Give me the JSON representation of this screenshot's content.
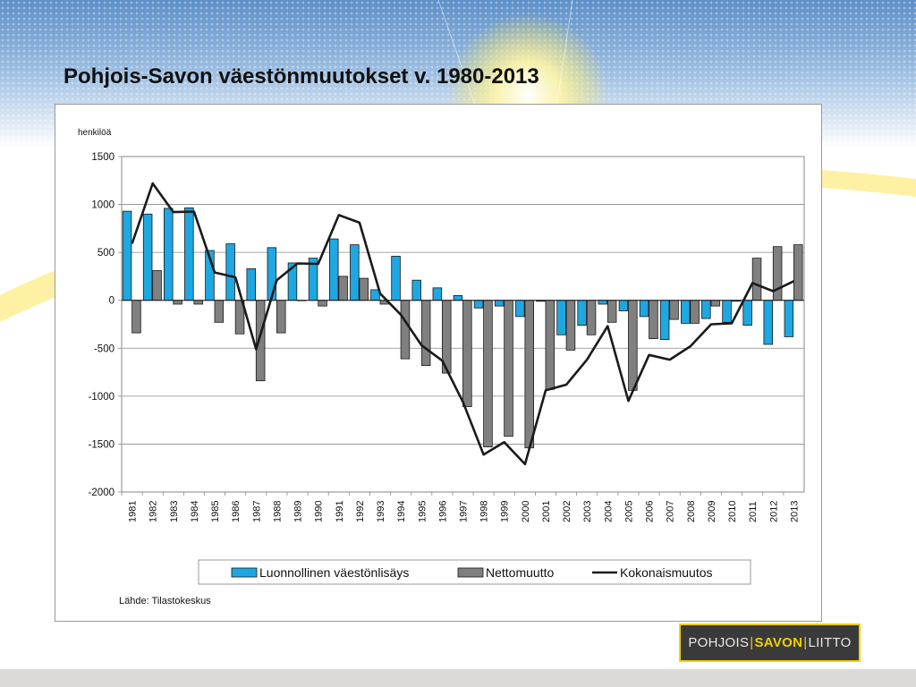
{
  "slide": {
    "title": "Pohjois-Savon väestönmuutokset v. 1980-2013",
    "source": "Lähde: Tilastokeskus",
    "logo": {
      "part1": "POHJOIS",
      "part2": "SAVON",
      "part3": "LIITTO"
    }
  },
  "colors": {
    "natural": "#1ea7e1",
    "net": "#808080",
    "total": "#1a1a1a",
    "logo_accent": "#f0d000"
  },
  "chart_data": {
    "type": "bar",
    "unit_label": "henkilöä",
    "categories": [
      "1981",
      "1982",
      "1983",
      "1984",
      "1985",
      "1986",
      "1987",
      "1988",
      "1989",
      "1990",
      "1991",
      "1992",
      "1993",
      "1994",
      "1995",
      "1996",
      "1997",
      "1998",
      "1999",
      "2000",
      "2001",
      "2002",
      "2003",
      "2004",
      "2005",
      "2006",
      "2007",
      "2008",
      "2009",
      "2010",
      "2011",
      "2012",
      "2013"
    ],
    "ylim": [
      -2000,
      1500
    ],
    "yticks": [
      1500,
      1000,
      500,
      0,
      -500,
      -1000,
      -1500,
      -2000
    ],
    "grid": true,
    "legend_position": "bottom",
    "series": [
      {
        "name": "Luonnollinen väestönlisäys",
        "type": "bar",
        "values": [
          930,
          900,
          960,
          965,
          520,
          590,
          330,
          550,
          390,
          440,
          640,
          580,
          110,
          460,
          210,
          130,
          50,
          -80,
          -60,
          -170,
          -10,
          -360,
          -260,
          -40,
          -110,
          -170,
          -410,
          -240,
          -190,
          -230,
          -260,
          -460,
          -380
        ]
      },
      {
        "name": "Nettomuutto",
        "type": "bar",
        "values": [
          -340,
          310,
          -40,
          -40,
          -230,
          -350,
          -840,
          -340,
          0,
          -60,
          250,
          230,
          -40,
          -610,
          -680,
          -760,
          -1110,
          -1530,
          -1420,
          -1540,
          -930,
          -520,
          -360,
          -230,
          -940,
          -400,
          -200,
          -240,
          -60,
          -10,
          440,
          560,
          580
        ]
      },
      {
        "name": "Kokonaismuutos",
        "type": "line",
        "values": [
          590,
          1220,
          920,
          925,
          290,
          240,
          -510,
          210,
          385,
          380,
          890,
          810,
          70,
          -150,
          -470,
          -630,
          -1060,
          -1610,
          -1480,
          -1710,
          -940,
          -880,
          -620,
          -270,
          -1050,
          -570,
          -620,
          -480,
          -250,
          -240,
          180,
          95,
          200
        ]
      }
    ]
  }
}
